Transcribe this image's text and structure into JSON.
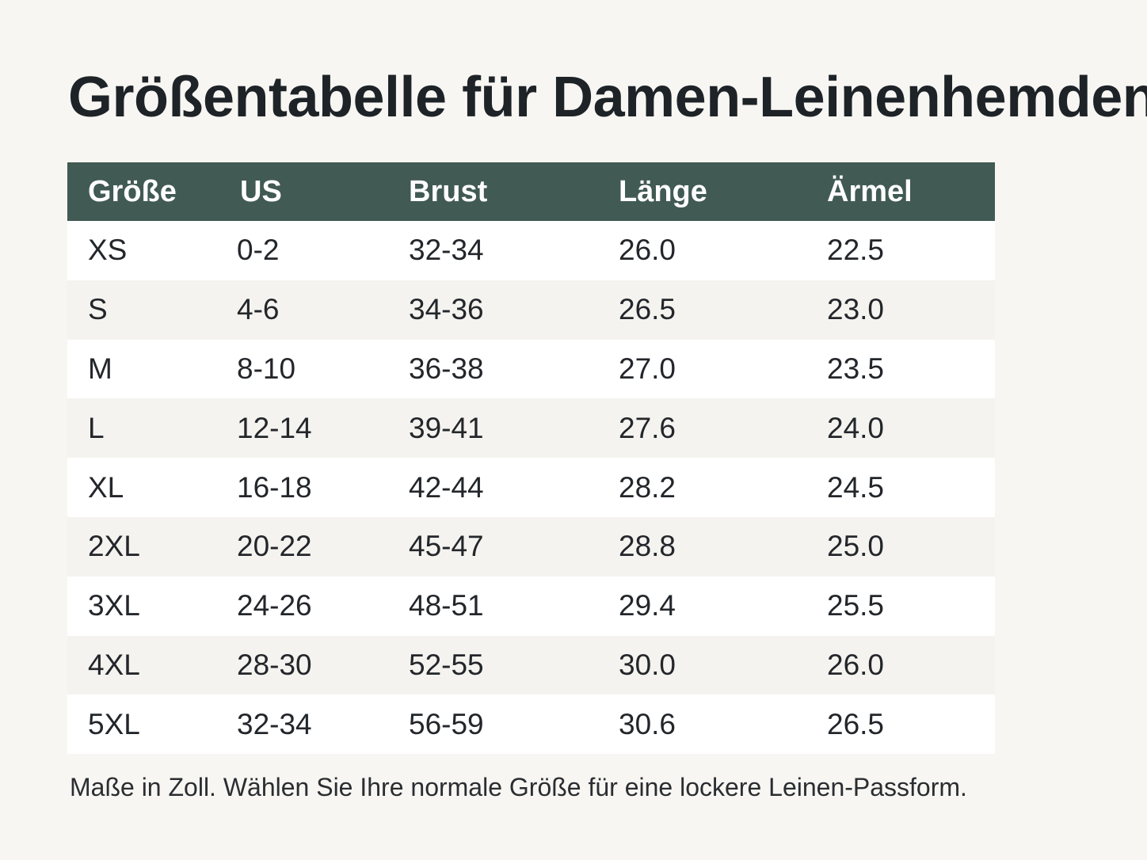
{
  "title": "Größentabelle für Damen-Leinenhemden",
  "table": {
    "headers": [
      "Größe",
      "US",
      "Brust",
      "Länge",
      "Ärmel"
    ],
    "rows": [
      [
        "XS",
        "0-2",
        "32-34",
        "26.0",
        "22.5"
      ],
      [
        "S",
        "4-6",
        "34-36",
        "26.5",
        "23.0"
      ],
      [
        "M",
        "8-10",
        "36-38",
        "27.0",
        "23.5"
      ],
      [
        "L",
        "12-14",
        "39-41",
        "27.6",
        "24.0"
      ],
      [
        "XL",
        "16-18",
        "42-44",
        "28.2",
        "24.5"
      ],
      [
        "2XL",
        "20-22",
        "45-47",
        "28.8",
        "25.0"
      ],
      [
        "3XL",
        "24-26",
        "48-51",
        "29.4",
        "25.5"
      ],
      [
        "4XL",
        "28-30",
        "52-55",
        "30.0",
        "26.0"
      ],
      [
        "5XL",
        "32-34",
        "56-59",
        "30.6",
        "26.5"
      ]
    ]
  },
  "footnote": "Maße in Zoll. Wählen Sie Ihre normale Größe für eine lockere Leinen-Passform.",
  "colors": {
    "header_background": "#415a53",
    "header_text": "#ffffff",
    "page_background": "#f7f6f2"
  }
}
